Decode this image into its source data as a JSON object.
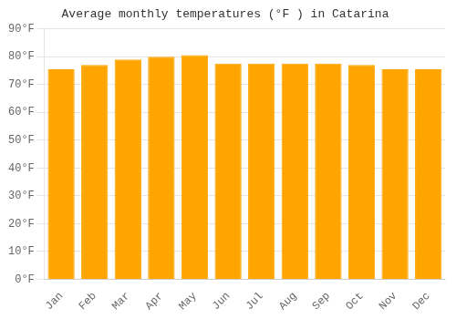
{
  "chart_data": {
    "type": "bar",
    "title": "Average monthly temperatures (°F ) in Catarina",
    "categories": [
      "Jan",
      "Feb",
      "Mar",
      "Apr",
      "May",
      "Jun",
      "Jul",
      "Aug",
      "Sep",
      "Oct",
      "Nov",
      "Dec"
    ],
    "values": [
      75.5,
      77.0,
      79.0,
      80.0,
      80.5,
      77.5,
      77.5,
      77.5,
      77.5,
      77.0,
      75.5,
      75.5
    ],
    "color": "#FFA500",
    "ylim": [
      0,
      90
    ],
    "yticks": [
      {
        "value": 0,
        "label": "0°F"
      },
      {
        "value": 10,
        "label": "10°F"
      },
      {
        "value": 20,
        "label": "20°F"
      },
      {
        "value": 30,
        "label": "30°F"
      },
      {
        "value": 40,
        "label": "40°F"
      },
      {
        "value": 50,
        "label": "50°F"
      },
      {
        "value": 60,
        "label": "60°F"
      },
      {
        "value": 70,
        "label": "70°F"
      },
      {
        "value": 80,
        "label": "80°F"
      },
      {
        "value": 90,
        "label": "90°F"
      }
    ],
    "grid": true
  }
}
